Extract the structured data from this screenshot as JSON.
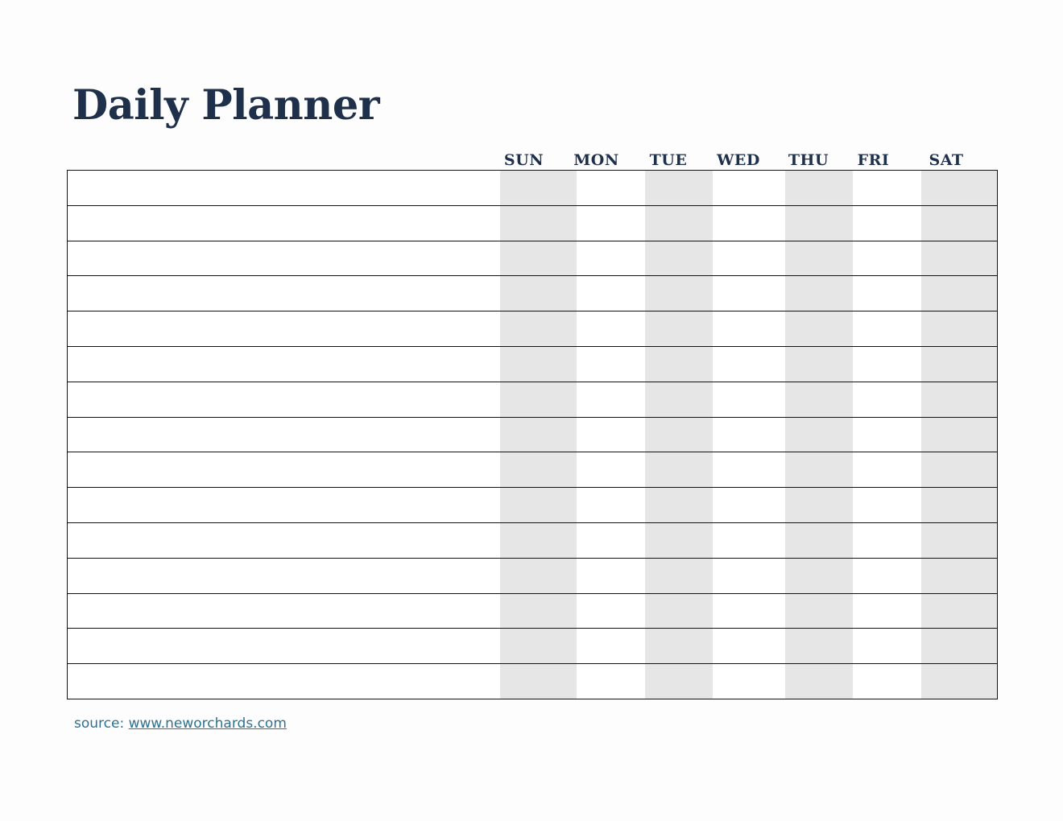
{
  "page": {
    "title": "Daily Planner"
  },
  "colors": {
    "accent_navy": "#1e304a",
    "stripe_gray": "#e6e6e6",
    "grid_line": "#121212",
    "link_teal": "#2d7191",
    "page_background": "#fdfdfd"
  },
  "planner": {
    "day_headers": [
      "SUN",
      "MON",
      "TUE",
      "WED",
      "THU",
      "FRI",
      "SAT"
    ],
    "shaded_day_headers": [
      "SUN",
      "TUE",
      "THU",
      "SAT"
    ],
    "row_count": 15
  },
  "footer": {
    "source_label": "source:",
    "source_link_text": "www.neworchards.com"
  }
}
